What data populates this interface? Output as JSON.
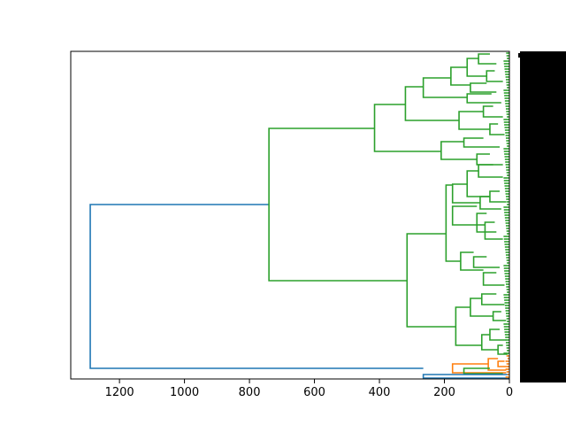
{
  "chart_data": {
    "type": "dendrogram",
    "orientation": "left",
    "xlim": [
      1350,
      0
    ],
    "x_ticks": [
      1200,
      1000,
      800,
      600,
      400,
      200,
      0
    ],
    "leaf_labels_note": "",
    "colors": {
      "root": "#1f77b4",
      "cluster_main": "#2ca02c",
      "cluster_small": "#ff7f0e",
      "axis": "#000000",
      "leaf_label_block": "#000000"
    },
    "merges": [
      {
        "cluster": "root",
        "height": 1290
      },
      {
        "cluster": "cluster_main",
        "height": 740
      },
      {
        "cluster": "cluster_main",
        "height": 415
      },
      {
        "cluster": "cluster_main",
        "height": 320
      },
      {
        "cluster": "cluster_main",
        "height": 315
      },
      {
        "cluster": "cluster_main",
        "height": 265
      },
      {
        "cluster": "cluster_main",
        "height": 210
      },
      {
        "cluster": "cluster_main",
        "height": 195
      },
      {
        "cluster": "cluster_main",
        "height": 180
      },
      {
        "cluster": "cluster_main",
        "height": 165
      },
      {
        "cluster": "cluster_main",
        "height": 155
      },
      {
        "cluster": "cluster_main",
        "height": 130
      },
      {
        "cluster": "cluster_small",
        "height": 265
      },
      {
        "cluster": "cluster_small",
        "height": 175
      },
      {
        "cluster": "cluster_small",
        "height": 65
      }
    ]
  }
}
